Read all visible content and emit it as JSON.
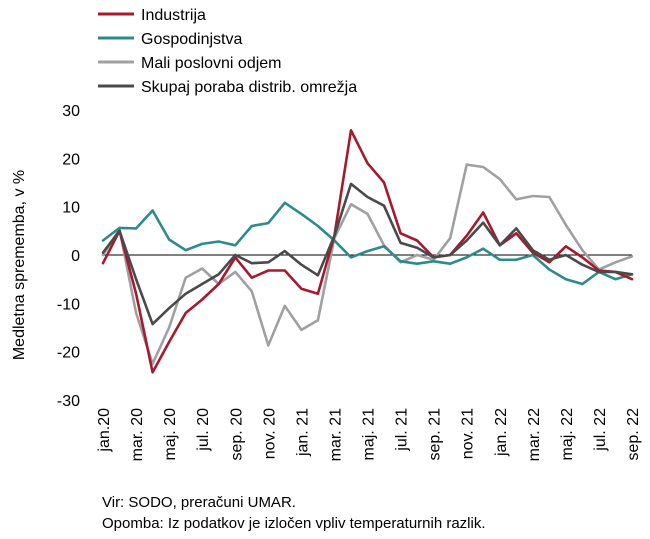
{
  "chart_data": {
    "type": "line",
    "ylabel": "Medletna sprememba, v %",
    "ylim": [
      -30,
      30
    ],
    "yticks": [
      -30,
      -20,
      -10,
      0,
      10,
      20,
      30
    ],
    "x_tick_labels": [
      "jan.20",
      "mar. 20",
      "maj. 20",
      "jul. 20",
      "sep. 20",
      "nov. 20",
      "jan. 21",
      "mar. 21",
      "maj. 21",
      "jul. 21",
      "sep. 21",
      "nov. 21",
      "jan. 22",
      "mar. 22",
      "maj. 22",
      "jul. 22",
      "sep. 22"
    ],
    "x": [
      "jan.20",
      "feb.20",
      "mar. 20",
      "apr.20",
      "maj. 20",
      "jun.20",
      "jul. 20",
      "avg.20",
      "sep. 20",
      "okt.20",
      "nov. 20",
      "dec.20",
      "jan. 21",
      "feb.21",
      "mar. 21",
      "apr.21",
      "maj. 21",
      "jun.21",
      "jul. 21",
      "avg.21",
      "sep. 21",
      "okt.21",
      "nov. 21",
      "dec.21",
      "jan. 22",
      "feb.22",
      "mar. 22",
      "apr.22",
      "maj. 22",
      "jun.22",
      "jul. 22",
      "avg.22",
      "sep. 22"
    ],
    "legend_position": "top-left",
    "series": [
      {
        "name": "Industrija",
        "color": "#A6192E",
        "values": [
          -1.7,
          5,
          -8,
          -24.3,
          -18,
          -12,
          -9.2,
          -6,
          -0.5,
          -4.7,
          -3.2,
          -3.2,
          -7,
          -8,
          4,
          25.8,
          19,
          15,
          4.5,
          3,
          -0.5,
          0,
          4,
          8.8,
          2,
          4.5,
          0.5,
          -1.5,
          1.8,
          -0.5,
          -3.2,
          -3.5,
          -5
        ]
      },
      {
        "name": "Gospodinjstva",
        "color": "#2E8B8B",
        "values": [
          3,
          5.6,
          5.5,
          9.2,
          3.2,
          1,
          2.3,
          2.8,
          2,
          6,
          6.6,
          10.8,
          8.5,
          6,
          3,
          -0.5,
          0.8,
          1.8,
          -1.3,
          -1.8,
          -1.3,
          -1.8,
          -0.5,
          1.3,
          -1,
          -1,
          0,
          -3,
          -5,
          -6,
          -3.5,
          -5,
          -4
        ]
      },
      {
        "name": "Mali poslovni odjem",
        "color": "#A0A0A0",
        "values": [
          0,
          5.3,
          -12,
          -22.5,
          -15,
          -4.7,
          -2.8,
          -6,
          -3.5,
          -7.5,
          -18.7,
          -10.5,
          -15.5,
          -13.5,
          3.5,
          10.5,
          8.5,
          2,
          -1.5,
          0,
          -1,
          3.5,
          18.7,
          18.2,
          15.7,
          11.5,
          12.2,
          12,
          6.2,
          1,
          -3,
          -1.5,
          -0.3
        ]
      },
      {
        "name": "Skupaj poraba distrib. omrežja",
        "color": "#4A4A4A",
        "values": [
          0.5,
          5,
          -5,
          -14.3,
          -11,
          -8,
          -6,
          -4,
          0,
          -1.7,
          -1.5,
          0.8,
          -2,
          -4.2,
          4,
          14.7,
          12,
          10.2,
          2.5,
          1.5,
          -0.5,
          0,
          3,
          6.7,
          2,
          5.5,
          1,
          -1,
          0,
          -2,
          -3.5,
          -3.5,
          -4
        ]
      }
    ]
  },
  "notes": {
    "source": "Vir: SODO, preračuni UMAR.",
    "note": "Opomba: Iz podatkov je izločen vpliv temperaturnih razlik."
  }
}
